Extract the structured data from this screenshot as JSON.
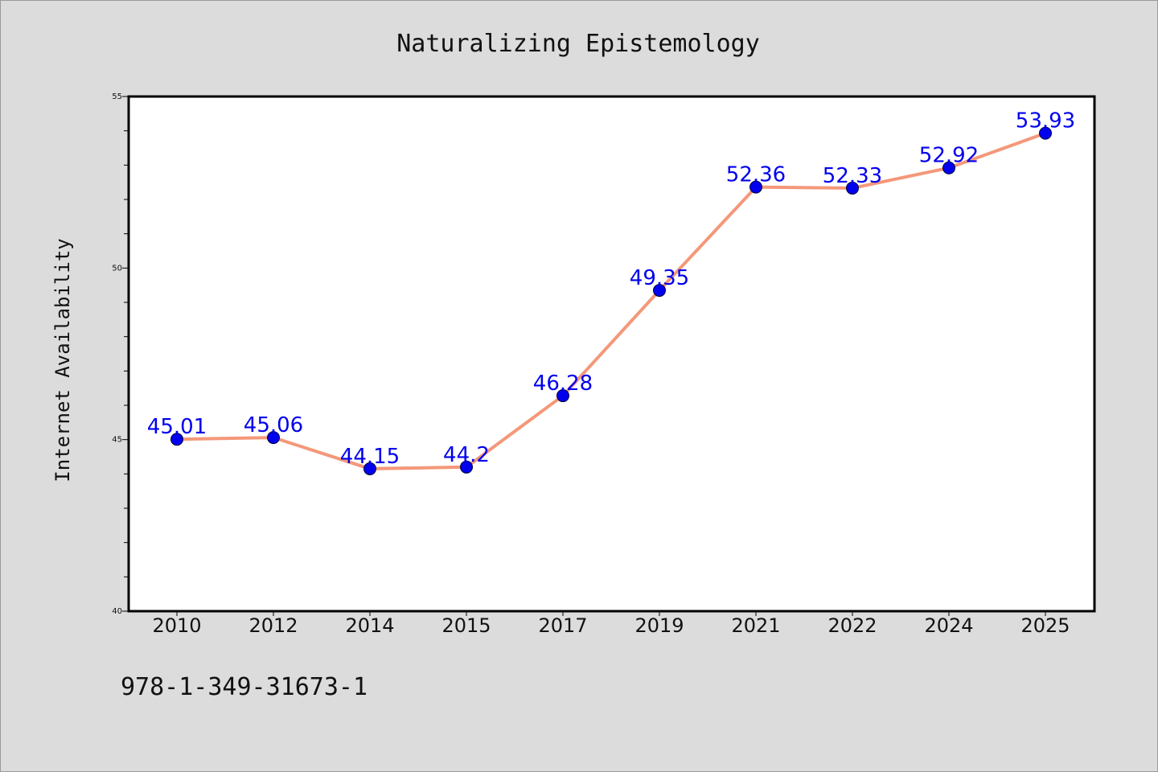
{
  "chart_data": {
    "type": "line",
    "title": "Naturalizing Epistemology",
    "xlabel": "",
    "ylabel": "Internet Availability",
    "categories": [
      "2010",
      "2012",
      "2014",
      "2015",
      "2017",
      "2019",
      "2021",
      "2022",
      "2024",
      "2025"
    ],
    "series": [
      {
        "values": [
          45.01,
          45.06,
          44.15,
          44.2,
          46.28,
          49.35,
          52.36,
          52.33,
          52.92,
          53.93
        ],
        "line_color": "#f4987a",
        "marker_color": "#0000ee",
        "label_color": "#0000ee"
      }
    ],
    "data_labels": [
      "45.01",
      "45.06",
      "44.15",
      "44.2",
      "46.28",
      "49.35",
      "52.36",
      "52.33",
      "52.92",
      "53.93"
    ],
    "ylim": [
      40,
      55
    ],
    "y_ticks": [
      40,
      45,
      50,
      55
    ],
    "y_tick_labels": [
      "40",
      "45",
      "50",
      "55"
    ],
    "grid": false,
    "legend": "none"
  },
  "footer": {
    "code": "978-1-349-31673-1"
  },
  "colors": {
    "background": "#dcdcdc",
    "plot_background": "#ffffff"
  }
}
